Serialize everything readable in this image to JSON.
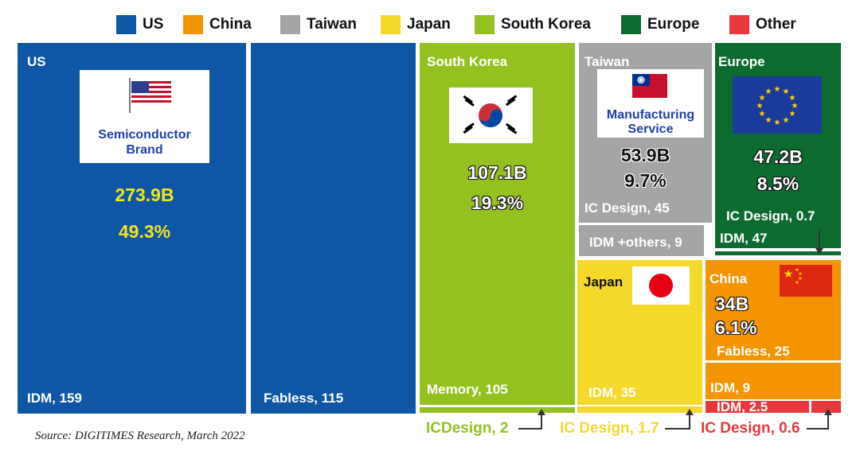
{
  "chart_data": {
    "type": "treemap",
    "total_note": "",
    "legend": [
      {
        "name": "US",
        "color": "#0f56a4"
      },
      {
        "name": "China",
        "color": "#f39400"
      },
      {
        "name": "Taiwan",
        "color": "#a5a5a5"
      },
      {
        "name": "Japan",
        "color": "#f4d92b"
      },
      {
        "name": "South Korea",
        "color": "#94c11f"
      },
      {
        "name": "Europe",
        "color": "#0d6b2f"
      },
      {
        "name": "Other",
        "color": "#e8383d"
      }
    ],
    "regions": [
      {
        "name": "US",
        "total": "273.9B",
        "share": "49.3%",
        "badge": "Semiconductor Brand",
        "segments": [
          {
            "label": "IDM, 159",
            "value": 159
          },
          {
            "label": "Fabless, 115",
            "value": 115
          }
        ]
      },
      {
        "name": "South Korea",
        "total": "107.1B",
        "share": "19.3%",
        "segments": [
          {
            "label": "Memory, 105",
            "value": 105
          },
          {
            "label": "ICDesign, 2",
            "value": 2
          }
        ]
      },
      {
        "name": "Taiwan",
        "total": "53.9B",
        "share": "9.7%",
        "badge": "Manufacturing Service",
        "segments": [
          {
            "label": "IC Design, 45",
            "value": 45
          },
          {
            "label": "IDM +others, 9",
            "value": 9
          }
        ]
      },
      {
        "name": "Europe",
        "total": "47.2B",
        "share": "8.5%",
        "segments": [
          {
            "label": "IDM, 47",
            "value": 47
          },
          {
            "label": "IC Design, 0.7",
            "value": 0.7
          }
        ]
      },
      {
        "name": "Japan",
        "total": "",
        "share": "",
        "segments": [
          {
            "label": "IDM, 35",
            "value": 35
          },
          {
            "label": "IC Design, 1.7",
            "value": 1.7
          }
        ]
      },
      {
        "name": "China",
        "total": "34B",
        "share": "6.1%",
        "segments": [
          {
            "label": "Fabless, 25",
            "value": 25
          },
          {
            "label": "IDM, 9",
            "value": 9
          }
        ]
      },
      {
        "name": "Other",
        "total": "",
        "share": "",
        "segments": [
          {
            "label": "IDM, 2.5",
            "value": 2.5
          },
          {
            "label": "IC Design, 0.6",
            "value": 0.6
          }
        ]
      }
    ]
  },
  "text": {
    "us": "US",
    "us_badge_1": "Semiconductor",
    "us_badge_2": "Brand",
    "us_total": "273.9B",
    "us_share": "49.3%",
    "us_idm": "IDM, 159",
    "us_fabless": "Fabless, 115",
    "kr": "South Korea",
    "kr_total": "107.1B",
    "kr_share": "19.3%",
    "kr_memory": "Memory, 105",
    "kr_icd": "ICDesign, 2",
    "tw": "Taiwan",
    "tw_badge_1": "Manufacturing",
    "tw_badge_2": "Service",
    "tw_total": "53.9B",
    "tw_share": "9.7%",
    "tw_icd": "IC Design, 45",
    "tw_idm": "IDM +others, 9",
    "eu": "Europe",
    "eu_total": "47.2B",
    "eu_share": "8.5%",
    "eu_icd": "IC Design, 0.7",
    "eu_idm": "IDM, 47",
    "jp": "Japan",
    "jp_idm": "IDM, 35",
    "jp_icd": "IC Design, 1.7",
    "cn": "China",
    "cn_total": "34B",
    "cn_share": "6.1%",
    "cn_fabless": "Fabless, 25",
    "cn_idm": "IDM, 9",
    "ot_idm": "IDM, 2.5",
    "ot_icd": "IC Design, 0.6",
    "source": "Source: DIGITIMES Research, March 2022"
  }
}
